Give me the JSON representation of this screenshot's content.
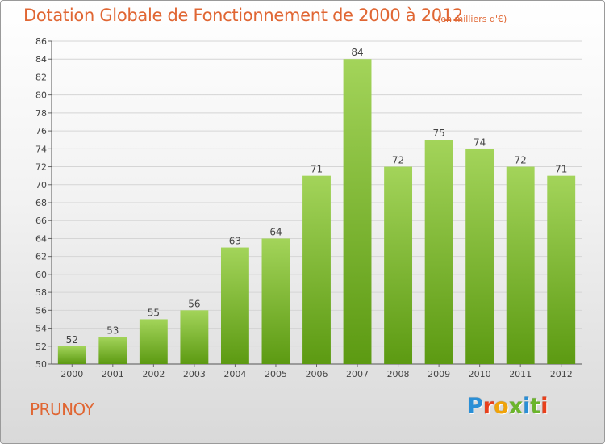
{
  "title": "Dotation Globale de Fonctionnement de 2000 à 2012",
  "subtitle": "(en milliers d'€)",
  "commune": "PRUNOY",
  "logo": {
    "text": "Proxiti",
    "letters": [
      "P",
      "r",
      "o",
      "x",
      "i",
      "t",
      "i"
    ],
    "colors": [
      "#2a8fd6",
      "#e8401c",
      "#f0a30a",
      "#6bb52b",
      "#2a8fd6",
      "#6bb52b",
      "#e8401c"
    ]
  },
  "colors": {
    "title": "#e06633",
    "bar_top": "#a3d45a",
    "bar_bottom": "#5c9a12",
    "grid": "#d5d5d5"
  },
  "chart_data": {
    "type": "bar",
    "categories": [
      "2000",
      "2001",
      "2002",
      "2003",
      "2004",
      "2005",
      "2006",
      "2007",
      "2008",
      "2009",
      "2010",
      "2011",
      "2012"
    ],
    "values": [
      52,
      53,
      55,
      56,
      63,
      64,
      71,
      84,
      72,
      75,
      74,
      72,
      71
    ],
    "ylim": [
      50,
      86
    ],
    "yticks": [
      50,
      52,
      54,
      56,
      58,
      60,
      62,
      64,
      66,
      68,
      70,
      72,
      74,
      76,
      78,
      80,
      82,
      84,
      86
    ],
    "grid": true,
    "data_labels": true
  }
}
